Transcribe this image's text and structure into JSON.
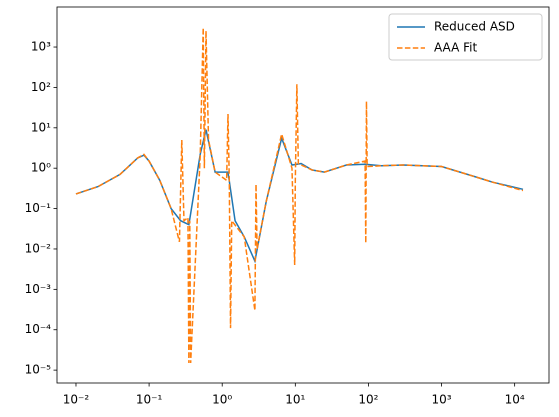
{
  "chart_data": {
    "type": "line",
    "xscale": "log",
    "yscale": "log",
    "grid": false,
    "legend": "upper right",
    "xlim": [
      0.0055,
      29500
    ],
    "ylim": [
      4.8e-06,
      9800
    ],
    "xticks": [
      {
        "value": 0.01,
        "label": "10⁻²"
      },
      {
        "value": 0.1,
        "label": "10⁻¹"
      },
      {
        "value": 1,
        "label": "10⁰"
      },
      {
        "value": 10,
        "label": "10¹"
      },
      {
        "value": 100,
        "label": "10²"
      },
      {
        "value": 1000,
        "label": "10³"
      },
      {
        "value": 10000,
        "label": "10⁴"
      }
    ],
    "yticks": [
      {
        "value": 1e-05,
        "label": "10⁻⁵"
      },
      {
        "value": 0.0001,
        "label": "10⁻⁴"
      },
      {
        "value": 0.001,
        "label": "10⁻³"
      },
      {
        "value": 0.01,
        "label": "10⁻²"
      },
      {
        "value": 0.1,
        "label": "10⁻¹"
      },
      {
        "value": 1,
        "label": "10⁰"
      },
      {
        "value": 10,
        "label": "10¹"
      },
      {
        "value": 100,
        "label": "10²"
      },
      {
        "value": 1000,
        "label": "10³"
      }
    ],
    "series": [
      {
        "name": "Reduced ASD",
        "color": "#1f77b4",
        "dashed": false,
        "x": [
          0.01,
          0.02,
          0.04,
          0.07,
          0.085,
          0.1,
          0.14,
          0.2,
          0.27,
          0.35,
          0.5,
          0.6,
          0.8,
          1.2,
          1.5,
          2,
          2.8,
          4,
          6.5,
          9,
          12,
          17,
          25,
          50,
          90,
          150,
          300,
          1000,
          3000,
          5000,
          13000
        ],
        "values": [
          0.23,
          0.35,
          0.7,
          1.8,
          2.1,
          1.5,
          0.5,
          0.1,
          0.05,
          0.04,
          2.2,
          9,
          0.8,
          0.8,
          0.05,
          0.02,
          0.005,
          0.15,
          5.5,
          1.2,
          1.3,
          0.9,
          0.8,
          1.2,
          1.25,
          1.15,
          1.2,
          1.1,
          0.6,
          0.45,
          0.3
        ]
      },
      {
        "name": "AAA Fit",
        "color": "#ff7f0e",
        "dashed": true,
        "x": [
          0.01,
          0.02,
          0.04,
          0.07,
          0.085,
          0.1,
          0.14,
          0.2,
          0.26,
          0.28,
          0.3,
          0.34,
          0.35,
          0.36,
          0.37,
          0.5,
          0.55,
          0.57,
          0.6,
          0.65,
          0.8,
          1.15,
          1.2,
          1.25,
          1.3,
          1.35,
          2,
          2.8,
          2.9,
          3,
          4,
          6.5,
          9,
          9.8,
          10,
          10.5,
          11,
          17,
          25,
          50,
          90,
          92,
          94,
          96,
          150,
          300,
          1000,
          3000,
          5000,
          13000
        ],
        "values": [
          0.23,
          0.35,
          0.7,
          1.8,
          2.2,
          1.5,
          0.5,
          0.1,
          0.015,
          5,
          0.05,
          0.06,
          1.5e-05,
          0.05,
          1.5e-05,
          2,
          3000,
          1,
          2500,
          5,
          0.8,
          0.5,
          22,
          0.5,
          0.00011,
          0.05,
          0.02,
          0.0003,
          0.4,
          0.01,
          0.15,
          7,
          1,
          0.004,
          0.5,
          120,
          1.3,
          0.9,
          0.8,
          1.2,
          1.5,
          0.014,
          45,
          1.1,
          1.15,
          1.2,
          1.1,
          0.6,
          0.45,
          0.28
        ]
      }
    ]
  }
}
